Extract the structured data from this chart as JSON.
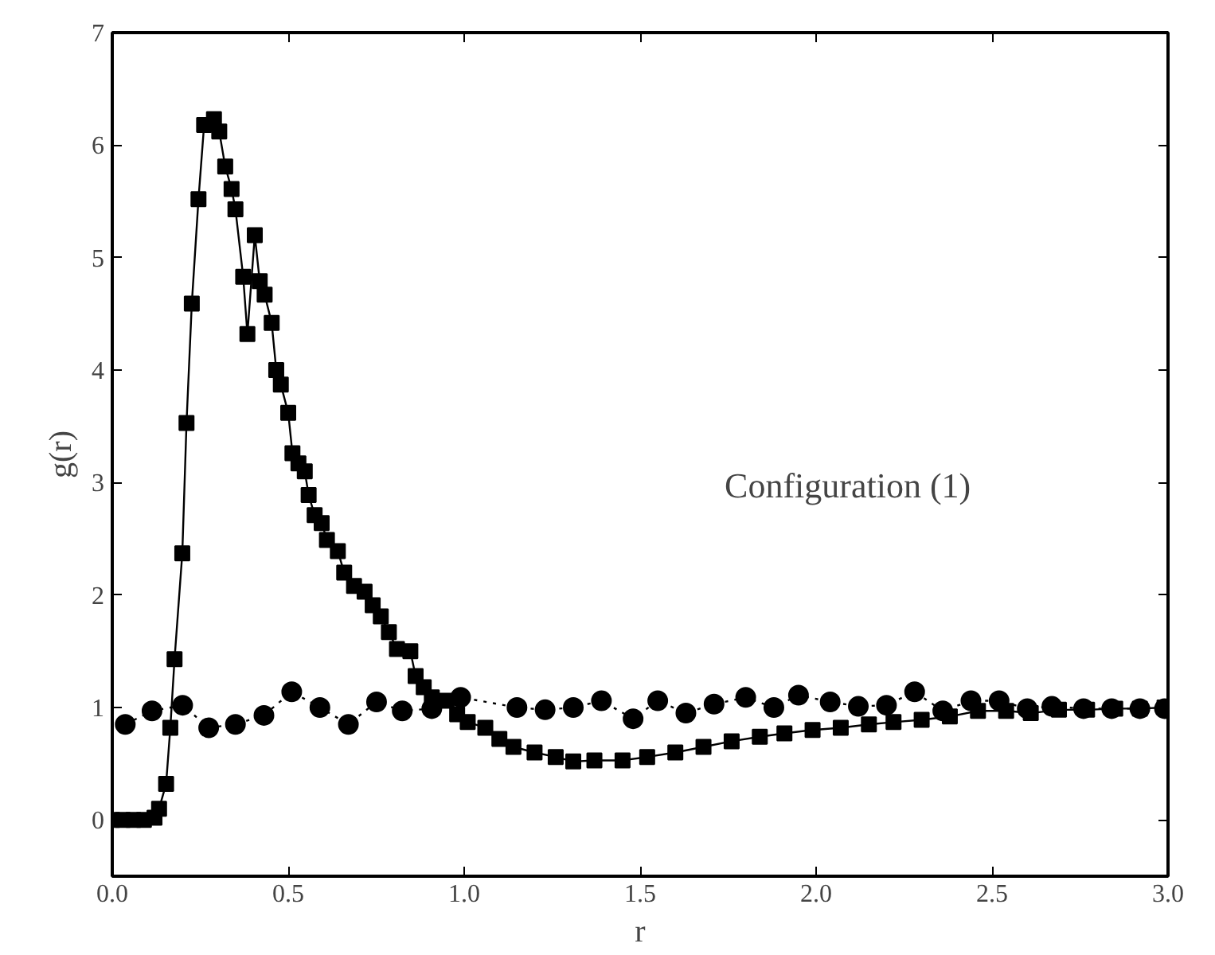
{
  "chart_data": {
    "type": "line",
    "xlabel": "r",
    "ylabel": "g(r)",
    "xlim": [
      0,
      3
    ],
    "ylim": [
      -0.5,
      7
    ],
    "xticks": [
      {
        "value": 0,
        "label": "0.0"
      },
      {
        "value": 0.5,
        "label": "0.5"
      },
      {
        "value": 1,
        "label": "1.0"
      },
      {
        "value": 1.5,
        "label": "1.5"
      },
      {
        "value": 2,
        "label": "2.0"
      },
      {
        "value": 2.5,
        "label": "2.5"
      },
      {
        "value": 3,
        "label": "3.0"
      }
    ],
    "yticks": [
      0,
      1,
      2,
      3,
      4,
      5,
      6,
      7
    ],
    "grid": false,
    "annotations": [
      "Configuration (1)"
    ],
    "series": [
      {
        "color": "#000000",
        "marker": "square",
        "line_style": "solid",
        "x": [
          0.0,
          0.03,
          0.06,
          0.09,
          0.12,
          0.133,
          0.153,
          0.165,
          0.177,
          0.199,
          0.211,
          0.226,
          0.245,
          0.261,
          0.289,
          0.304,
          0.321,
          0.339,
          0.35,
          0.372,
          0.384,
          0.405,
          0.419,
          0.433,
          0.453,
          0.466,
          0.479,
          0.5,
          0.512,
          0.529,
          0.547,
          0.558,
          0.575,
          0.595,
          0.61,
          0.641,
          0.659,
          0.687,
          0.717,
          0.74,
          0.763,
          0.786,
          0.809,
          0.847,
          0.862,
          0.885,
          0.908,
          0.95,
          0.98,
          1.01,
          1.06,
          1.1,
          1.14,
          1.2,
          1.26,
          1.31,
          1.37,
          1.45,
          1.52,
          1.6,
          1.68,
          1.76,
          1.84,
          1.91,
          1.99,
          2.07,
          2.15,
          2.22,
          2.3,
          2.38,
          2.46,
          2.54,
          2.61,
          2.69,
          2.77,
          2.85,
          2.92,
          2.99
        ],
        "values": [
          0,
          0,
          0,
          0,
          0.02,
          0.1,
          0.32,
          0.82,
          1.43,
          2.37,
          3.53,
          4.59,
          5.52,
          6.18,
          6.23,
          6.12,
          5.81,
          5.61,
          5.43,
          4.83,
          4.32,
          5.2,
          4.79,
          4.67,
          4.42,
          4.0,
          3.87,
          3.62,
          3.26,
          3.17,
          3.1,
          2.89,
          2.71,
          2.64,
          2.49,
          2.39,
          2.2,
          2.08,
          2.03,
          1.91,
          1.81,
          1.67,
          1.52,
          1.5,
          1.28,
          1.18,
          1.09,
          1.06,
          0.94,
          0.87,
          0.82,
          0.72,
          0.65,
          0.6,
          0.56,
          0.52,
          0.53,
          0.53,
          0.56,
          0.6,
          0.65,
          0.7,
          0.74,
          0.77,
          0.8,
          0.82,
          0.85,
          0.87,
          0.89,
          0.92,
          0.97,
          0.97,
          0.95,
          0.98,
          0.98,
          0.99,
          0.99,
          1.0
        ]
      },
      {
        "color": "#000000",
        "marker": "circle",
        "line_style": "dotted",
        "x": [
          0.037,
          0.113,
          0.2,
          0.274,
          0.35,
          0.431,
          0.51,
          0.59,
          0.671,
          0.751,
          0.824,
          0.908,
          0.99,
          1.15,
          1.23,
          1.31,
          1.39,
          1.48,
          1.55,
          1.63,
          1.71,
          1.8,
          1.88,
          1.95,
          2.04,
          2.12,
          2.2,
          2.28,
          2.36,
          2.44,
          2.52,
          2.6,
          2.67,
          2.76,
          2.84,
          2.92,
          2.99
        ],
        "values": [
          0.85,
          0.97,
          1.02,
          0.82,
          0.85,
          0.93,
          1.14,
          1.0,
          0.85,
          1.05,
          0.97,
          0.99,
          1.09,
          1.0,
          0.98,
          1.0,
          1.06,
          0.9,
          1.06,
          0.95,
          1.03,
          1.09,
          1.0,
          1.11,
          1.05,
          1.01,
          1.02,
          1.14,
          0.97,
          1.06,
          1.06,
          0.99,
          1.01,
          0.99,
          0.99,
          0.99,
          0.99
        ]
      }
    ]
  }
}
